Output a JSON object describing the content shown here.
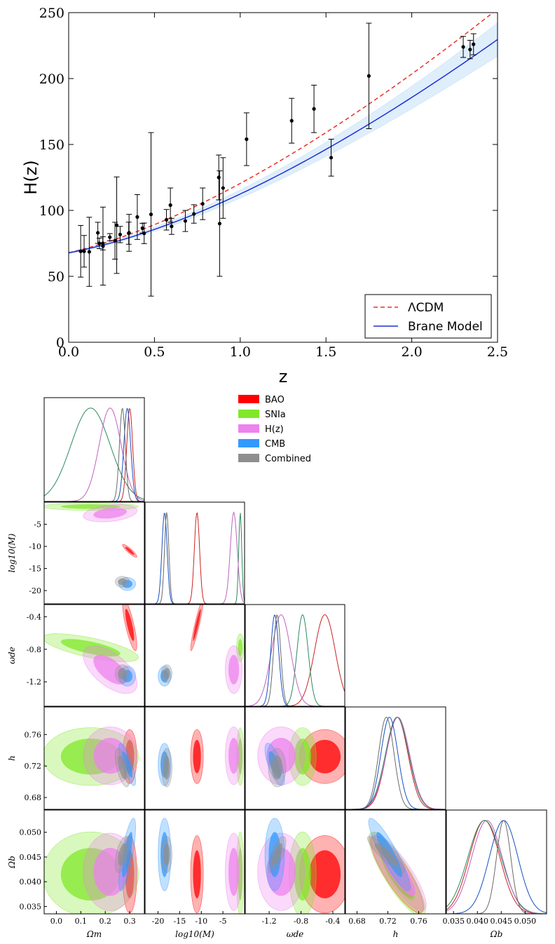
{
  "chart_data": [
    {
      "type": "scatter",
      "title": "",
      "xlabel": "z",
      "ylabel": "H(z)",
      "xlim": [
        0.0,
        2.5
      ],
      "ylim": [
        0,
        250
      ],
      "xticks": [
        "0.0",
        "0.5",
        "1.0",
        "1.5",
        "2.0",
        "2.5"
      ],
      "yticks": [
        "0",
        "50",
        "100",
        "150",
        "200",
        "250"
      ],
      "legend": {
        "position": "bottom-right",
        "entries": [
          "ΛCDM",
          "Brane Model"
        ]
      },
      "series": [
        {
          "name": "data",
          "kind": "errorbar",
          "points": [
            {
              "z": 0.07,
              "H": 69,
              "err": 19.6
            },
            {
              "z": 0.09,
              "H": 69,
              "err": 12
            },
            {
              "z": 0.12,
              "H": 68.6,
              "err": 26.2
            },
            {
              "z": 0.17,
              "H": 83,
              "err": 8
            },
            {
              "z": 0.179,
              "H": 75,
              "err": 4
            },
            {
              "z": 0.199,
              "H": 75,
              "err": 5
            },
            {
              "z": 0.2,
              "H": 72.9,
              "err": 29.6
            },
            {
              "z": 0.24,
              "H": 79.7,
              "err": 2.7
            },
            {
              "z": 0.27,
              "H": 77,
              "err": 14
            },
            {
              "z": 0.28,
              "H": 88.8,
              "err": 36.6
            },
            {
              "z": 0.3,
              "H": 81.7,
              "err": 6.2
            },
            {
              "z": 0.35,
              "H": 82.7,
              "err": 8.4
            },
            {
              "z": 0.352,
              "H": 83,
              "err": 14
            },
            {
              "z": 0.4,
              "H": 95,
              "err": 17
            },
            {
              "z": 0.43,
              "H": 86.5,
              "err": 3.7
            },
            {
              "z": 0.44,
              "H": 82.6,
              "err": 7.8
            },
            {
              "z": 0.48,
              "H": 97,
              "err": 62
            },
            {
              "z": 0.57,
              "H": 92.9,
              "err": 7.8
            },
            {
              "z": 0.593,
              "H": 104,
              "err": 13
            },
            {
              "z": 0.6,
              "H": 87.9,
              "err": 6.1
            },
            {
              "z": 0.68,
              "H": 92,
              "err": 8
            },
            {
              "z": 0.73,
              "H": 97.3,
              "err": 7
            },
            {
              "z": 0.781,
              "H": 105,
              "err": 12
            },
            {
              "z": 0.875,
              "H": 125,
              "err": 17
            },
            {
              "z": 0.88,
              "H": 90,
              "err": 40
            },
            {
              "z": 0.9,
              "H": 117,
              "err": 23
            },
            {
              "z": 1.037,
              "H": 154,
              "err": 20
            },
            {
              "z": 1.3,
              "H": 168,
              "err": 17
            },
            {
              "z": 1.43,
              "H": 177,
              "err": 18
            },
            {
              "z": 1.53,
              "H": 140,
              "err": 14
            },
            {
              "z": 1.75,
              "H": 202,
              "err": 40
            },
            {
              "z": 2.3,
              "H": 224,
              "err": 8
            },
            {
              "z": 2.34,
              "H": 222,
              "err": 7
            },
            {
              "z": 2.36,
              "H": 226,
              "err": 8
            }
          ]
        },
        {
          "name": "ΛCDM",
          "kind": "line",
          "style": "dashed",
          "color": "#e8322b",
          "params": {
            "H0": 67.8,
            "Om": 0.308
          }
        },
        {
          "name": "Brane Model",
          "kind": "line",
          "style": "solid",
          "color": "#1f2fd6",
          "params": {
            "H0": 67.8,
            "Om": 0.25
          }
        }
      ]
    },
    {
      "type": "corner",
      "title": "",
      "parameters": [
        {
          "symbol": "Ωm",
          "label": "Ω_m",
          "range": [
            -0.05,
            0.36
          ],
          "ticks": [
            "0.0",
            "0.1",
            "0.2",
            "0.3"
          ]
        },
        {
          "symbol": "log10(M)",
          "label": "log10(M)",
          "range": [
            -23,
            0
          ],
          "ticks": [
            "-20",
            "-15",
            "-10",
            "-5"
          ]
        },
        {
          "symbol": "ωde",
          "label": "ω_de",
          "range": [
            -1.5,
            -0.25
          ],
          "ticks": [
            "-1.2",
            "-0.8",
            "-0.4"
          ]
        },
        {
          "symbol": "h",
          "label": "h",
          "range": [
            0.665,
            0.795
          ],
          "ticks": [
            "0.68",
            "0.72",
            "0.76"
          ]
        },
        {
          "symbol": "Ωb",
          "label": "Ω_b",
          "range": [
            0.0335,
            0.0545
          ],
          "ticks": [
            "0.035",
            "0.040",
            "0.045",
            "0.050"
          ]
        }
      ],
      "legend": {
        "position": "top-right",
        "entries": [
          {
            "name": "BAO",
            "color": "#ff0000"
          },
          {
            "name": "SNIa",
            "color": "#80e829"
          },
          {
            "name": "H(z)",
            "color": "#ee82ee"
          },
          {
            "name": "CMB",
            "color": "#3399ff"
          },
          {
            "name": "Combined",
            "color": "#8f8f8f"
          }
        ]
      },
      "datasets": [
        {
          "name": "BAO",
          "color": "#ff0000",
          "line": "#cc2222",
          "mean": [
            0.3,
            -11,
            -0.5,
            0.732,
            0.0415
          ],
          "sd": [
            0.012,
            0.6,
            0.13,
            0.014,
            0.0032
          ],
          "rho": {
            "0-1": -0.9,
            "0-2": -0.8,
            "1-2": 0.93,
            "3-4": -0.85
          }
        },
        {
          "name": "SNIa",
          "color": "#80e829",
          "line": "#2b8a5c",
          "mean": [
            0.14,
            -1,
            -0.78,
            0.732,
            0.0415
          ],
          "sd": [
            0.08,
            0.35,
            0.07,
            0.015,
            0.0035
          ],
          "rho": {
            "0-2": -0.7,
            "3-4": -0.85
          }
        },
        {
          "name": "H(z)",
          "color": "#ee82ee",
          "line": "#c060c0",
          "mean": [
            0.22,
            -2.5,
            -1.05,
            0.733,
            0.042
          ],
          "sd": [
            0.045,
            0.8,
            0.12,
            0.015,
            0.0032
          ],
          "rho": {
            "0-1": 0.3,
            "0-2": -0.6,
            "3-4": -0.85
          }
        },
        {
          "name": "CMB",
          "color": "#3399ff",
          "line": "#1550c0",
          "mean": [
            0.29,
            -18.5,
            -1.13,
            0.722,
            0.0455
          ],
          "sd": [
            0.014,
            0.6,
            0.05,
            0.011,
            0.003
          ],
          "rho": {
            "0-3": -0.8,
            "0-4": 0.75,
            "2-3": -0.7,
            "3-4": -0.9
          }
        },
        {
          "name": "Combined",
          "color": "#8f8f8f",
          "line": "#6a6a6a",
          "mean": [
            0.27,
            -18,
            -1.1,
            0.718,
            0.0455
          ],
          "sd": [
            0.012,
            0.5,
            0.045,
            0.01,
            0.0015
          ],
          "rho": {
            "0-3": -0.6,
            "0-4": 0.5,
            "2-4": 0.7,
            "3-4": -0.9
          }
        }
      ]
    }
  ]
}
